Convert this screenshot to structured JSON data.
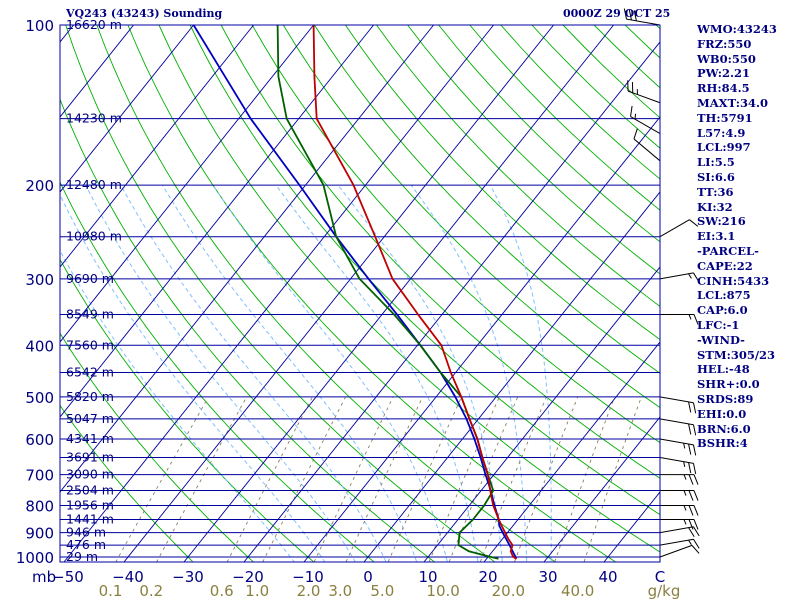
{
  "header": {
    "station": "VQ243 (43243) Sounding",
    "time": "0000Z 29 OCT 25"
  },
  "indices": [
    "WMO:43243",
    "FRZ:550",
    "WB0:550",
    "PW:2.21",
    "RH:84.5",
    "MAXT:34.0",
    "TH:5791",
    "L57:4.9",
    "LCL:997",
    "LI:5.5",
    "SI:6.6",
    "TT:36",
    "KI:32",
    "SW:216",
    "EI:3.1",
    "-PARCEL-",
    "CAPE:22",
    "CINH:5433",
    "LCL:875",
    "CAP:6.0",
    "LFC:-1",
    "-WIND-",
    "STM:305/23",
    "HEL:-48",
    "SHR+:0.0",
    "SRDS:89",
    "EHI:0.0",
    "BRN:6.0",
    "BSHR:4"
  ],
  "colors": {
    "text": "#000080",
    "isobar": "#0000a0",
    "isotherm": "#0000a0",
    "dry_adiabat": "#00b000",
    "moist_adiabat": "#80c0ff",
    "mixing_ratio": "#8a8060",
    "temperature": "#c00000",
    "dewpoint": "#006000",
    "parcel": "#0000c0",
    "mixing_ratio_labels": "#8a8040"
  },
  "chart_data": {
    "type": "line",
    "subtype": "skew-T log-p sounding",
    "x_unit_label": "C",
    "y_unit_label": "mb",
    "pressure_ticks": [
      100,
      200,
      300,
      400,
      500,
      600,
      700,
      800,
      900,
      1000
    ],
    "pressure_ylim": [
      100,
      1050
    ],
    "temperature_ticks": [
      -50,
      -40,
      -30,
      -20,
      -10,
      0,
      10,
      20,
      30,
      40
    ],
    "mixing_ratio_unit": "g/kg",
    "mixing_ratio_ticks": [
      "0.1",
      "0.2",
      "0.6",
      "1.0",
      "2.0",
      "3.0",
      "5.0",
      "10.0",
      "20.0",
      "40.0"
    ],
    "height_levels": [
      {
        "p": 100,
        "label": "16620 m"
      },
      {
        "p": 150,
        "label": "14230 m"
      },
      {
        "p": 200,
        "label": "12480 m"
      },
      {
        "p": 250,
        "label": "10980 m"
      },
      {
        "p": 300,
        "label": "9690 m"
      },
      {
        "p": 350,
        "label": "8549 m"
      },
      {
        "p": 400,
        "label": "7560 m"
      },
      {
        "p": 450,
        "label": "6542 m"
      },
      {
        "p": 500,
        "label": "5820 m"
      },
      {
        "p": 550,
        "label": "5047 m"
      },
      {
        "p": 600,
        "label": "4341 m"
      },
      {
        "p": 650,
        "label": "3691 m"
      },
      {
        "p": 700,
        "label": "3090 m"
      },
      {
        "p": 750,
        "label": "2504 m"
      },
      {
        "p": 800,
        "label": "1956 m"
      },
      {
        "p": 850,
        "label": "1441 m"
      },
      {
        "p": 900,
        "label": "946 m"
      },
      {
        "p": 950,
        "label": "476 m"
      },
      {
        "p": 1000,
        "label": "29 m"
      }
    ],
    "temperature": [
      {
        "p": 1008,
        "t": 25.0
      },
      {
        "p": 1000,
        "t": 24.2
      },
      {
        "p": 975,
        "t": 23.0
      },
      {
        "p": 950,
        "t": 22.5
      },
      {
        "p": 925,
        "t": 21.0
      },
      {
        "p": 900,
        "t": 19.6
      },
      {
        "p": 875,
        "t": 18.2
      },
      {
        "p": 850,
        "t": 16.8
      },
      {
        "p": 800,
        "t": 14.0
      },
      {
        "p": 750,
        "t": 11.5
      },
      {
        "p": 700,
        "t": 9.0
      },
      {
        "p": 650,
        "t": 5.8
      },
      {
        "p": 600,
        "t": 2.5
      },
      {
        "p": 550,
        "t": -1.5
      },
      {
        "p": 500,
        "t": -5.8
      },
      {
        "p": 450,
        "t": -10.8
      },
      {
        "p": 400,
        "t": -16.0
      },
      {
        "p": 350,
        "t": -24.0
      },
      {
        "p": 300,
        "t": -33.0
      },
      {
        "p": 250,
        "t": -41.5
      },
      {
        "p": 200,
        "t": -52.0
      },
      {
        "p": 150,
        "t": -67.0
      },
      {
        "p": 125,
        "t": -73.0
      },
      {
        "p": 100,
        "t": -80.0
      }
    ],
    "dewpoint": [
      {
        "p": 1008,
        "t": 22.0
      },
      {
        "p": 1000,
        "t": 20.5
      },
      {
        "p": 975,
        "t": 16.0
      },
      {
        "p": 950,
        "t": 13.5
      },
      {
        "p": 900,
        "t": 12.0
      },
      {
        "p": 850,
        "t": 12.5
      },
      {
        "p": 800,
        "t": 12.5
      },
      {
        "p": 750,
        "t": 12.0
      },
      {
        "p": 700,
        "t": 9.0
      },
      {
        "p": 650,
        "t": 5.8
      },
      {
        "p": 600,
        "t": 2.5
      },
      {
        "p": 550,
        "t": -1.5
      },
      {
        "p": 500,
        "t": -5.8
      },
      {
        "p": 450,
        "t": -12.5
      },
      {
        "p": 400,
        "t": -19.5
      },
      {
        "p": 350,
        "t": -28.0
      },
      {
        "p": 300,
        "t": -38.5
      },
      {
        "p": 250,
        "t": -48.0
      },
      {
        "p": 200,
        "t": -57.0
      },
      {
        "p": 150,
        "t": -72.0
      },
      {
        "p": 125,
        "t": -79.0
      },
      {
        "p": 100,
        "t": -86.0
      }
    ],
    "parcel": [
      {
        "p": 1008,
        "t": 25.0
      },
      {
        "p": 950,
        "t": 22.0
      },
      {
        "p": 900,
        "t": 19.2
      },
      {
        "p": 875,
        "t": 17.8
      },
      {
        "p": 850,
        "t": 16.8
      },
      {
        "p": 800,
        "t": 14.2
      },
      {
        "p": 750,
        "t": 11.6
      },
      {
        "p": 700,
        "t": 8.6
      },
      {
        "p": 650,
        "t": 5.5
      },
      {
        "p": 600,
        "t": 2.0
      },
      {
        "p": 550,
        "t": -2.0
      },
      {
        "p": 500,
        "t": -6.8
      },
      {
        "p": 450,
        "t": -12.5
      },
      {
        "p": 400,
        "t": -19.5
      },
      {
        "p": 350,
        "t": -27.5
      },
      {
        "p": 300,
        "t": -37.0
      },
      {
        "p": 250,
        "t": -48.0
      },
      {
        "p": 200,
        "t": -61.0
      },
      {
        "p": 150,
        "t": -78.0
      },
      {
        "p": 100,
        "t": -100.0
      }
    ],
    "wind_barbs": [
      {
        "p": 100,
        "dir": 280,
        "kt": 30
      },
      {
        "p": 140,
        "dir": 290,
        "kt": 25
      },
      {
        "p": 160,
        "dir": 300,
        "kt": 15
      },
      {
        "p": 180,
        "dir": 310,
        "kt": 10
      },
      {
        "p": 250,
        "dir": 60,
        "kt": 10
      },
      {
        "p": 300,
        "dir": 80,
        "kt": 15
      },
      {
        "p": 350,
        "dir": 90,
        "kt": 15
      },
      {
        "p": 500,
        "dir": 100,
        "kt": 20
      },
      {
        "p": 550,
        "dir": 100,
        "kt": 20
      },
      {
        "p": 600,
        "dir": 100,
        "kt": 25
      },
      {
        "p": 650,
        "dir": 100,
        "kt": 25
      },
      {
        "p": 700,
        "dir": 90,
        "kt": 25
      },
      {
        "p": 750,
        "dir": 90,
        "kt": 25
      },
      {
        "p": 800,
        "dir": 90,
        "kt": 25
      },
      {
        "p": 850,
        "dir": 90,
        "kt": 25
      },
      {
        "p": 900,
        "dir": 80,
        "kt": 20
      },
      {
        "p": 950,
        "dir": 80,
        "kt": 15
      },
      {
        "p": 1000,
        "dir": 70,
        "kt": 10
      }
    ]
  }
}
